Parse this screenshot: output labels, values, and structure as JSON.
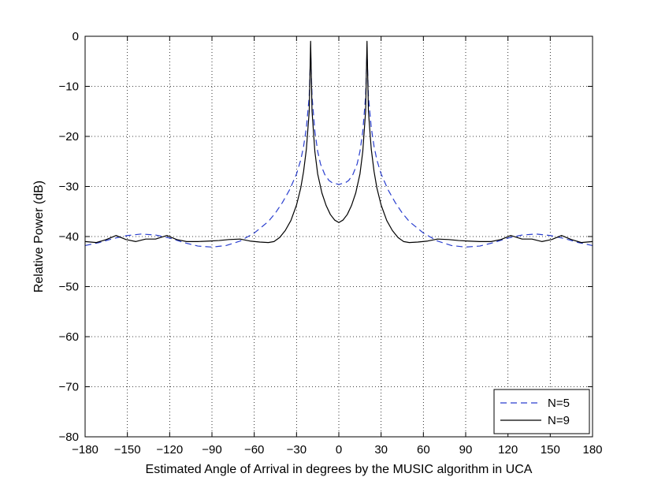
{
  "chart_data": {
    "type": "line",
    "xlabel": "Estimated Angle of Arrival in degrees by the MUSIC algorithm in UCA",
    "ylabel": "Relative Power (dB)",
    "xlim": [
      -180,
      180
    ],
    "ylim": [
      -80,
      0
    ],
    "xticks": [
      -180,
      -150,
      -120,
      -90,
      -60,
      -30,
      0,
      30,
      60,
      90,
      120,
      150,
      180
    ],
    "yticks": [
      0,
      -10,
      -20,
      -30,
      -40,
      -50,
      -60,
      -70,
      -80
    ],
    "grid": true,
    "legend_position": "bottom-right",
    "series": [
      {
        "name": "N=5",
        "color": "#2a3fcf",
        "style": "dashed",
        "x": [
          -180,
          -170,
          -160,
          -150,
          -140,
          -130,
          -120,
          -110,
          -100,
          -90,
          -80,
          -70,
          -60,
          -50,
          -45,
          -40,
          -35,
          -30,
          -27,
          -25,
          -23,
          -21,
          -20,
          -19,
          -17,
          -15,
          -13,
          -10,
          -7,
          -5,
          0,
          5,
          7,
          10,
          13,
          15,
          17,
          19,
          20,
          21,
          23,
          25,
          27,
          30,
          35,
          40,
          45,
          50,
          60,
          70,
          80,
          90,
          100,
          110,
          120,
          130,
          140,
          150,
          160,
          170,
          180
        ],
        "y": [
          -41.8,
          -41.2,
          -40.4,
          -39.8,
          -39.5,
          -39.7,
          -40.3,
          -41.2,
          -41.9,
          -42.1,
          -41.8,
          -40.9,
          -39.3,
          -37.0,
          -35.3,
          -33.2,
          -30.7,
          -27.5,
          -24.7,
          -22.0,
          -18.2,
          -12.0,
          -3.0,
          -12.0,
          -19.0,
          -23.0,
          -25.5,
          -27.6,
          -28.8,
          -29.2,
          -29.6,
          -29.2,
          -28.8,
          -27.6,
          -25.5,
          -23.0,
          -19.0,
          -12.0,
          -3.0,
          -12.0,
          -18.2,
          -22.0,
          -24.7,
          -27.5,
          -30.7,
          -33.2,
          -35.3,
          -37.0,
          -39.3,
          -40.9,
          -41.8,
          -42.1,
          -41.9,
          -41.2,
          -40.3,
          -39.7,
          -39.5,
          -39.8,
          -40.4,
          -41.2,
          -41.8
        ]
      },
      {
        "name": "N=9",
        "color": "#000000",
        "style": "solid",
        "x": [
          -180,
          -172,
          -165,
          -158,
          -151,
          -144,
          -137,
          -130,
          -122,
          -115,
          -108,
          -100,
          -92,
          -85,
          -78,
          -70,
          -63,
          -56,
          -50,
          -46,
          -42,
          -38,
          -34,
          -30,
          -27,
          -25,
          -23,
          -21,
          -20,
          -19,
          -17,
          -15,
          -12,
          -9,
          -6,
          -3,
          0,
          3,
          6,
          9,
          12,
          15,
          17,
          19,
          20,
          21,
          23,
          25,
          27,
          30,
          34,
          38,
          42,
          46,
          50,
          56,
          63,
          70,
          78,
          85,
          92,
          100,
          108,
          115,
          122,
          130,
          137,
          144,
          151,
          158,
          165,
          172,
          180
        ],
        "y": [
          -41.0,
          -41.2,
          -40.6,
          -39.8,
          -40.6,
          -41.0,
          -40.5,
          -40.5,
          -39.8,
          -40.6,
          -41.0,
          -41.0,
          -40.9,
          -40.8,
          -40.6,
          -40.5,
          -40.9,
          -41.1,
          -41.2,
          -41.0,
          -40.2,
          -38.8,
          -36.8,
          -33.7,
          -30.3,
          -27.0,
          -22.5,
          -15.0,
          -1.0,
          -15.0,
          -23.0,
          -27.5,
          -31.3,
          -33.8,
          -35.6,
          -36.7,
          -37.2,
          -36.7,
          -35.6,
          -33.8,
          -31.3,
          -27.5,
          -23.0,
          -15.0,
          -1.0,
          -15.0,
          -22.5,
          -27.0,
          -30.3,
          -33.7,
          -36.8,
          -38.8,
          -40.2,
          -41.0,
          -41.2,
          -41.1,
          -40.9,
          -40.5,
          -40.6,
          -40.8,
          -40.9,
          -41.0,
          -41.0,
          -40.6,
          -39.8,
          -40.5,
          -40.5,
          -41.0,
          -40.6,
          -39.8,
          -40.6,
          -41.2,
          -41.0
        ]
      }
    ]
  }
}
